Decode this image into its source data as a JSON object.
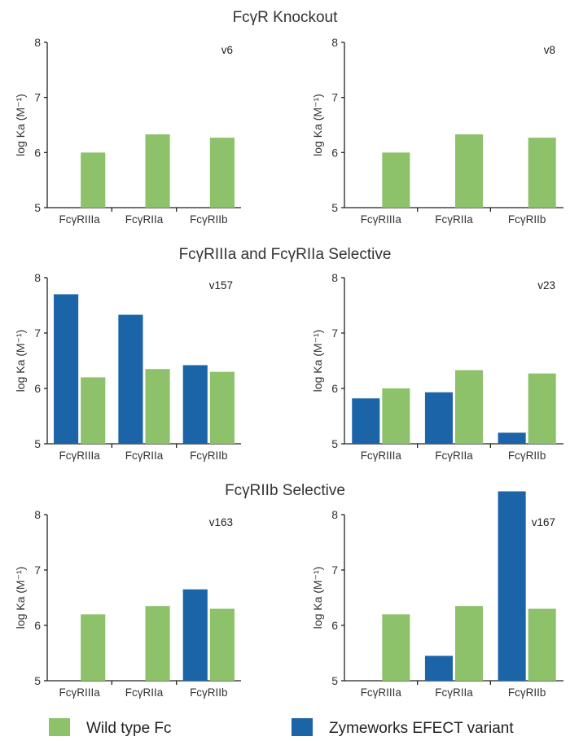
{
  "colors": {
    "wild_type": "#8dc26a",
    "variant": "#1c64a8",
    "axis": "#222222"
  },
  "sections": [
    "FcγR Knockout",
    "FcγRIIIa and FcγRIIa Selective",
    "FcγRIIb Selective"
  ],
  "legend": {
    "wild_type_label": "Wild type Fc",
    "variant_label": "Zymeworks EFECT variant"
  },
  "chart_data": [
    {
      "type": "bar",
      "panel": "v6",
      "section": 0,
      "categories": [
        "FcγRIIIa",
        "FcγRIIa",
        "FcγRIIb"
      ],
      "ylabel": "log Ka (M⁻¹)",
      "ylim": [
        5,
        8
      ],
      "yticks": [
        5,
        6,
        7,
        8
      ],
      "series": [
        {
          "name": "Wild type Fc",
          "values": [
            6.0,
            6.33,
            6.27
          ]
        }
      ]
    },
    {
      "type": "bar",
      "panel": "v8",
      "section": 0,
      "categories": [
        "FcγRIIIa",
        "FcγRIIa",
        "FcγRIIb"
      ],
      "ylabel": "log Ka (M⁻¹)",
      "ylim": [
        5,
        8
      ],
      "yticks": [
        5,
        6,
        7,
        8
      ],
      "series": [
        {
          "name": "Wild type Fc",
          "values": [
            6.0,
            6.33,
            6.27
          ]
        }
      ]
    },
    {
      "type": "bar",
      "panel": "v157",
      "section": 1,
      "categories": [
        "FcγRIIIa",
        "FcγRIIa",
        "FcγRIIb"
      ],
      "ylabel": "log Ka (M⁻¹)",
      "ylim": [
        5,
        8
      ],
      "yticks": [
        5,
        6,
        7,
        8
      ],
      "series": [
        {
          "name": "Zymeworks EFECT variant",
          "values": [
            7.7,
            7.33,
            6.42
          ]
        },
        {
          "name": "Wild type Fc",
          "values": [
            6.2,
            6.35,
            6.3
          ]
        }
      ]
    },
    {
      "type": "bar",
      "panel": "v23",
      "section": 1,
      "categories": [
        "FcγRIIIa",
        "FcγRIIa",
        "FcγRIIb"
      ],
      "ylabel": "log Ka (M⁻¹)",
      "ylim": [
        5,
        8
      ],
      "yticks": [
        5,
        6,
        7,
        8
      ],
      "series": [
        {
          "name": "Zymeworks EFECT variant",
          "values": [
            5.82,
            5.93,
            5.2
          ]
        },
        {
          "name": "Wild type Fc",
          "values": [
            6.0,
            6.33,
            6.27
          ]
        }
      ]
    },
    {
      "type": "bar",
      "panel": "v163",
      "section": 2,
      "categories": [
        "FcγRIIIa",
        "FcγRIIa",
        "FcγRIIb"
      ],
      "ylabel": "log Ka (M⁻¹)",
      "ylim": [
        5,
        8
      ],
      "yticks": [
        5,
        6,
        7,
        8
      ],
      "series": [
        {
          "name": "Zymeworks EFECT variant",
          "values": [
            null,
            null,
            6.65
          ]
        },
        {
          "name": "Wild type Fc",
          "values": [
            6.2,
            6.35,
            6.3
          ]
        }
      ]
    },
    {
      "type": "bar",
      "panel": "v167",
      "section": 2,
      "categories": [
        "FcγRIIIa",
        "FcγRIIa",
        "FcγRIIb"
      ],
      "ylabel": "log Ka (M⁻¹)",
      "ylim": [
        5,
        8
      ],
      "yticks": [
        5,
        6,
        7,
        8
      ],
      "series": [
        {
          "name": "Zymeworks EFECT variant",
          "values": [
            null,
            5.45,
            8.42
          ]
        },
        {
          "name": "Wild type Fc",
          "values": [
            6.2,
            6.35,
            6.3
          ]
        }
      ]
    }
  ]
}
